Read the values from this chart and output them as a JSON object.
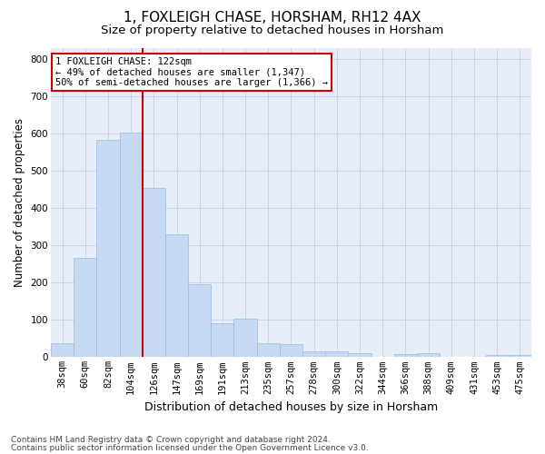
{
  "title": "1, FOXLEIGH CHASE, HORSHAM, RH12 4AX",
  "subtitle": "Size of property relative to detached houses in Horsham",
  "xlabel": "Distribution of detached houses by size in Horsham",
  "ylabel": "Number of detached properties",
  "categories": [
    "38sqm",
    "60sqm",
    "82sqm",
    "104sqm",
    "126sqm",
    "147sqm",
    "169sqm",
    "191sqm",
    "213sqm",
    "235sqm",
    "257sqm",
    "278sqm",
    "300sqm",
    "322sqm",
    "344sqm",
    "366sqm",
    "388sqm",
    "409sqm",
    "431sqm",
    "453sqm",
    "475sqm"
  ],
  "values": [
    38,
    267,
    582,
    603,
    453,
    330,
    196,
    90,
    103,
    38,
    35,
    15,
    15,
    10,
    0,
    8,
    10,
    0,
    0,
    7,
    7
  ],
  "bar_color": "#c5d9f1",
  "bar_edge_color": "#9ab7e0",
  "vline_index": 4,
  "vline_color": "#cc0000",
  "annotation_line1": "1 FOXLEIGH CHASE: 122sqm",
  "annotation_line2": "← 49% of detached houses are smaller (1,347)",
  "annotation_line3": "50% of semi-detached houses are larger (1,366) →",
  "annotation_box_color": "#ffffff",
  "annotation_box_edge": "#cc0000",
  "ylim": [
    0,
    830
  ],
  "yticks": [
    0,
    100,
    200,
    300,
    400,
    500,
    600,
    700,
    800
  ],
  "grid_color": "#c8d4e8",
  "bg_color": "#e8eef8",
  "footer_line1": "Contains HM Land Registry data © Crown copyright and database right 2024.",
  "footer_line2": "Contains public sector information licensed under the Open Government Licence v3.0.",
  "title_fontsize": 11,
  "subtitle_fontsize": 9.5,
  "xlabel_fontsize": 9,
  "ylabel_fontsize": 8.5,
  "tick_fontsize": 7.5,
  "footer_fontsize": 6.5,
  "annot_fontsize": 7.5
}
